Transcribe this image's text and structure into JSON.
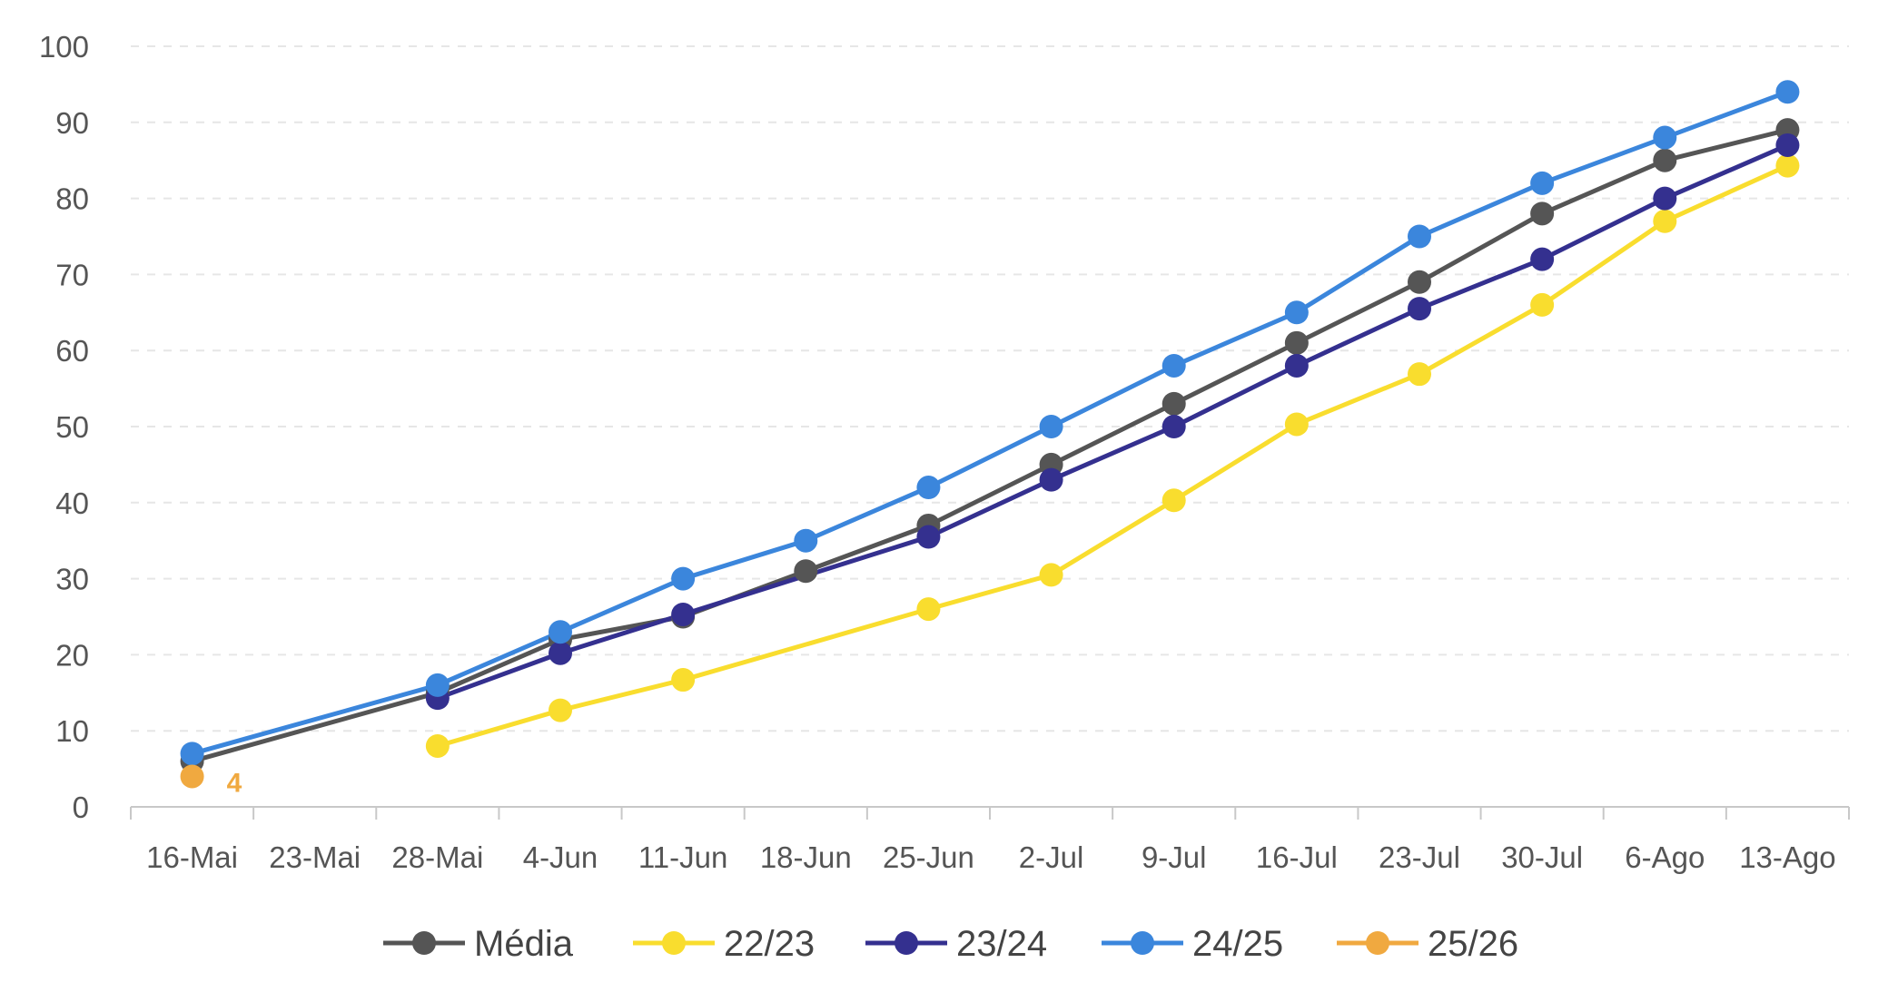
{
  "chart_data": {
    "type": "line",
    "title": "",
    "xlabel": "",
    "ylabel": "",
    "ylim": [
      0,
      100
    ],
    "y_ticks": [
      "0",
      "10",
      "20",
      "30",
      "40",
      "50",
      "60",
      "70",
      "80",
      "90",
      "100"
    ],
    "grid": "horizontal dashed",
    "legend": "bottom",
    "categories": [
      "16-Mai",
      "23-Mai",
      "28-Mai",
      "4-Jun",
      "11-Jun",
      "18-Jun",
      "25-Jun",
      "2-Jul",
      "9-Jul",
      "16-Jul",
      "23-Jul",
      "30-Jul",
      "6-Ago",
      "13-Ago"
    ],
    "series": [
      {
        "name": "Média",
        "color": "#555555",
        "values": [
          6,
          null,
          15,
          22,
          25,
          31,
          37,
          45,
          53,
          61,
          69,
          78,
          85,
          89
        ]
      },
      {
        "name": "22/23",
        "color": "#F9DD2E",
        "values": [
          null,
          null,
          8,
          12.7,
          16.7,
          null,
          26,
          30.5,
          40.3,
          50.3,
          56.9,
          66,
          77,
          84.3
        ]
      },
      {
        "name": "23/24",
        "color": "#34308F",
        "values": [
          null,
          null,
          14.3,
          20.2,
          25.3,
          null,
          35.5,
          43,
          50,
          58,
          65.5,
          72,
          80,
          87
        ]
      },
      {
        "name": "24/25",
        "color": "#3B86DC",
        "values": [
          7,
          null,
          16,
          23,
          30,
          35,
          42,
          50,
          58,
          65,
          75,
          82,
          88,
          94
        ]
      },
      {
        "name": "25/26",
        "color": "#F0A940",
        "values": [
          4,
          null,
          null,
          null,
          null,
          null,
          null,
          null,
          null,
          null,
          null,
          null,
          null,
          null
        ]
      }
    ],
    "data_labels": [
      {
        "series": "25/26",
        "category": "16-Mai",
        "text": "4"
      }
    ]
  }
}
